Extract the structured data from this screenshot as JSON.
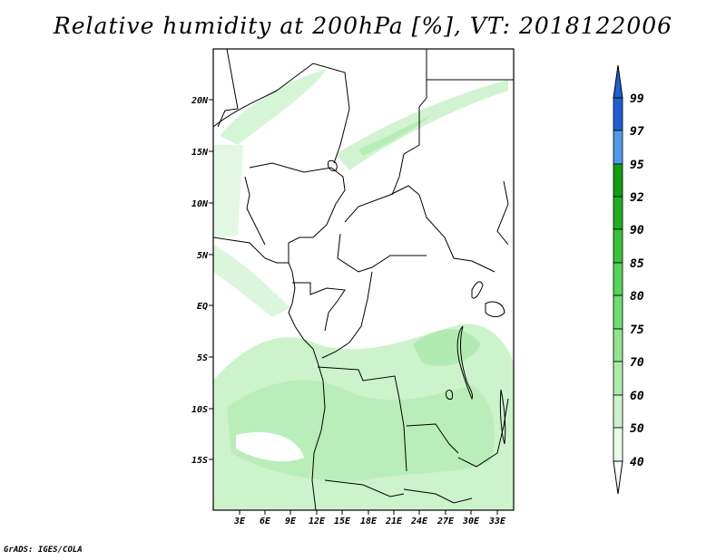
{
  "title": "Relative humidity at 200hPa [%], VT: 2018122006",
  "credit": "GrADS: IGES/COLA",
  "lat_labels": [
    "20N",
    "15N",
    "10N",
    "5N",
    "EQ",
    "5S",
    "10S",
    "15S"
  ],
  "lon_labels": [
    "3E",
    "6E",
    "9E",
    "12E",
    "15E",
    "18E",
    "21E",
    "24E",
    "27E",
    "30E",
    "33E"
  ],
  "colorbar": {
    "labels": [
      "99",
      "97",
      "95",
      "92",
      "90",
      "85",
      "80",
      "75",
      "70",
      "60",
      "50",
      "40"
    ],
    "colors": [
      "#1f5fd6",
      "#2a7ee4",
      "#4d9be8",
      "#129e12",
      "#1eb01e",
      "#37c337",
      "#55d455",
      "#6edd6e",
      "#8fe58f",
      "#aeecae",
      "#ccf3cc",
      "#e8fbe8"
    ]
  }
}
